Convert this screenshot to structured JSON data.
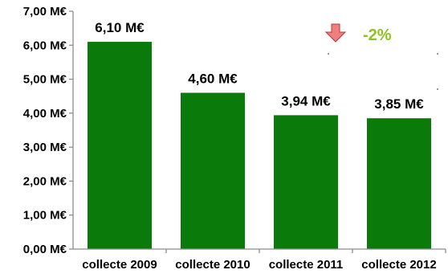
{
  "chart_data": {
    "type": "bar",
    "categories": [
      "collecte 2009",
      "collecte 2010",
      "collecte 2011",
      "collecte 2012"
    ],
    "values": [
      6.1,
      4.6,
      3.94,
      3.85
    ],
    "data_labels": [
      "6,10 M€",
      "4,60 M€",
      "3,94 M€",
      "3,85 M€"
    ],
    "y_tick_values": [
      0,
      1,
      2,
      3,
      4,
      5,
      6,
      7
    ],
    "y_tick_labels": [
      "0,00 M€",
      "1,00 M€",
      "2,00 M€",
      "3,00 M€",
      "4,00 M€",
      "5,00 M€",
      "6,00 M€",
      "7,00 M€"
    ],
    "ylim": [
      0,
      7
    ],
    "grid": false,
    "annotation": {
      "text": "-2%",
      "icon": "arrow-down-icon"
    },
    "colors": {
      "bar": "#0a7a0a",
      "annotation_text": "#8dc21f",
      "arrow_fill": "#ef7f7f",
      "arrow_stroke": "#b23b3b",
      "axis": "#8c8c8c"
    }
  }
}
